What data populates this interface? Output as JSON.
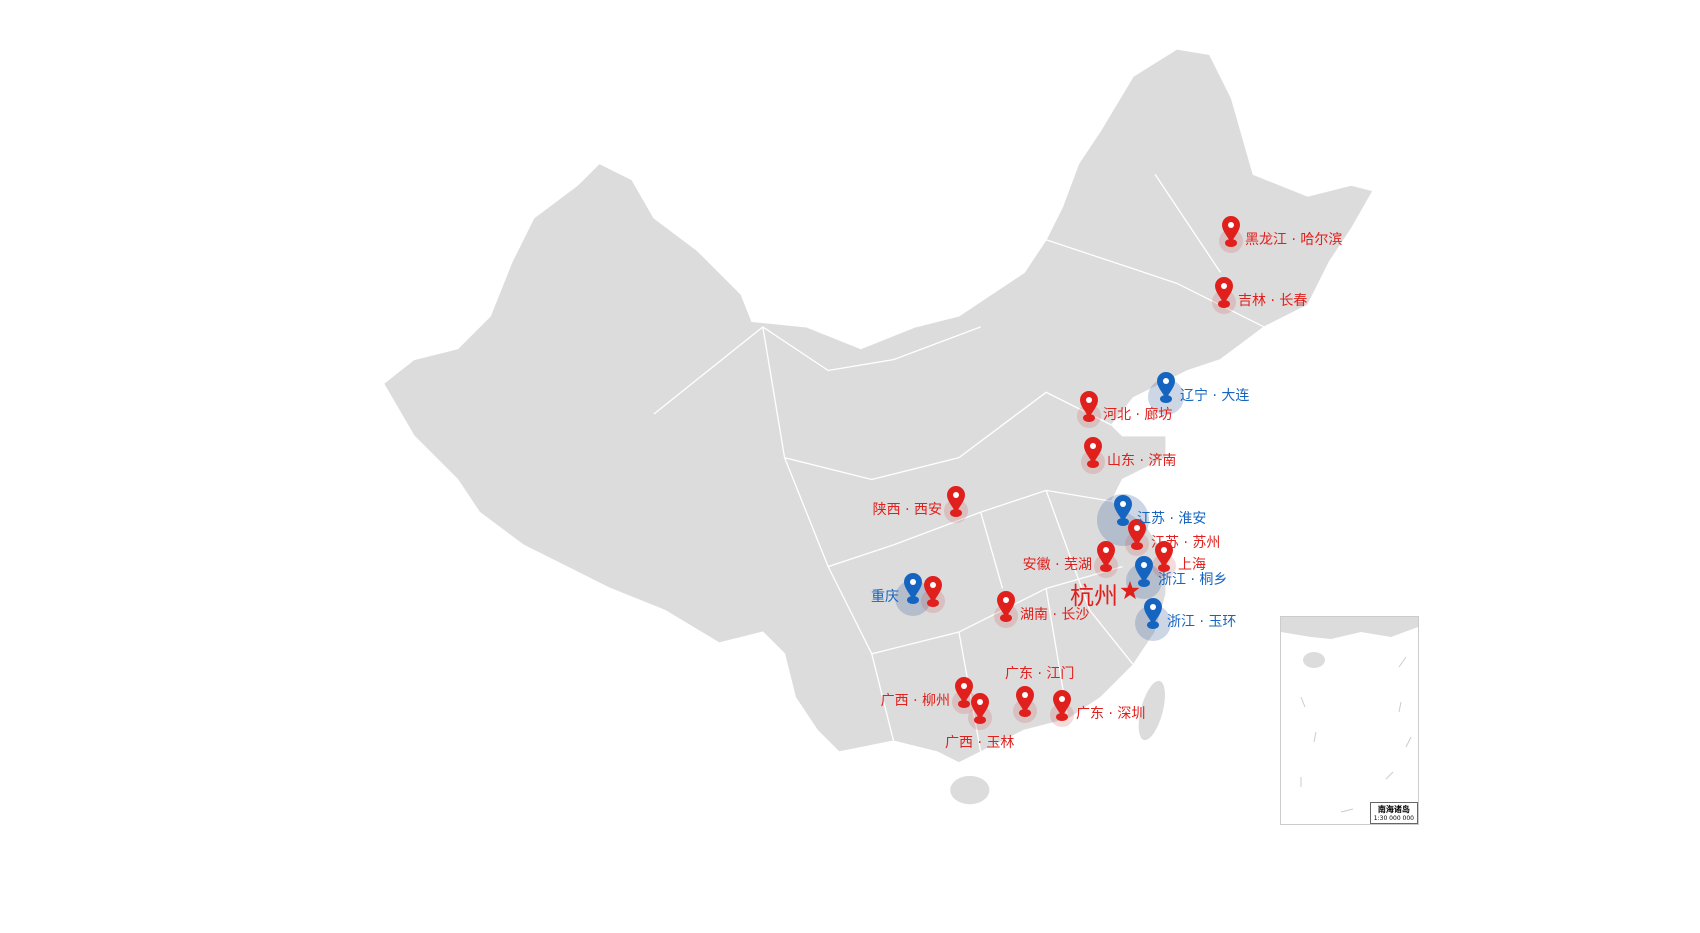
{
  "colors": {
    "land": "#dcdcdc",
    "border": "#ffffff",
    "red_pin": "#e0201c",
    "blue_pin": "#1565c0"
  },
  "capital": {
    "label": "杭州",
    "icon": "star-icon"
  },
  "markers": [
    {
      "label": "黑龙江 · 哈尔滨",
      "color": "red"
    },
    {
      "label": "吉林 · 长春",
      "color": "red"
    },
    {
      "label": "辽宁 · 大连",
      "color": "blue"
    },
    {
      "label": "河北 · 廊坊",
      "color": "red"
    },
    {
      "label": "山东 · 济南",
      "color": "red"
    },
    {
      "label": "陕西 · 西安",
      "color": "red"
    },
    {
      "label": "江苏 · 淮安",
      "color": "blue"
    },
    {
      "label": "江苏 · 苏州",
      "color": "red"
    },
    {
      "label": "安徽 · 芜湖",
      "color": "red"
    },
    {
      "label": "上海",
      "color": "red"
    },
    {
      "label": "浙江 · 桐乡",
      "color": "blue"
    },
    {
      "label": "浙江 · 玉环",
      "color": "blue"
    },
    {
      "label": "重庆",
      "color": "blue"
    },
    {
      "label": "",
      "color": "red"
    },
    {
      "label": "湖南 · 长沙",
      "color": "red"
    },
    {
      "label": "广西 · 柳州",
      "color": "red"
    },
    {
      "label": "广西 · 玉林",
      "color": "red"
    },
    {
      "label": "广东 · 江门",
      "color": "red"
    },
    {
      "label": "广东 · 深圳",
      "color": "red"
    }
  ],
  "inset": {
    "title": "南海诸岛",
    "scale": "1:30 000 000"
  }
}
